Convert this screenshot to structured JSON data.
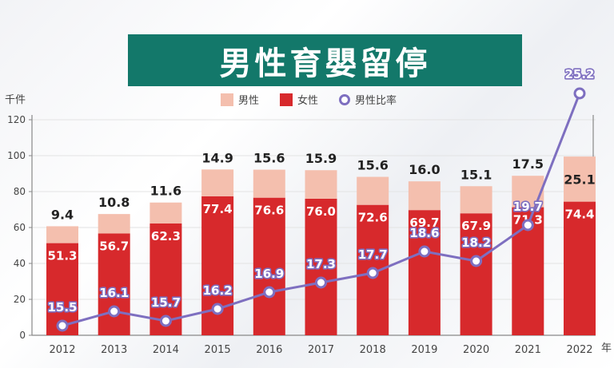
{
  "title": "男性育嬰留停",
  "unit_label": "千件",
  "year_unit": "年",
  "legend": {
    "male": "男性",
    "female": "女性",
    "ratio": "男性比率"
  },
  "colors": {
    "male": "#f4bfae",
    "female": "#d7292c",
    "ratio": "#7e6fc0",
    "banner": "#13786a"
  },
  "chart_data": {
    "type": "bar",
    "stacked": true,
    "title": "男性育嬰留停",
    "ylabel": "千件",
    "xlabel": "年",
    "ylim": [
      0,
      120
    ],
    "yticks": [
      0,
      20,
      40,
      60,
      80,
      100,
      120
    ],
    "categories": [
      "2012",
      "2013",
      "2014",
      "2015",
      "2016",
      "2017",
      "2018",
      "2019",
      "2020",
      "2021",
      "2022"
    ],
    "series": [
      {
        "name": "女性",
        "values": [
          51.3,
          56.7,
          62.3,
          77.4,
          76.6,
          76.0,
          72.6,
          69.7,
          67.9,
          71.3,
          74.4
        ]
      },
      {
        "name": "男性",
        "values": [
          9.4,
          10.8,
          11.6,
          14.9,
          15.6,
          15.9,
          15.6,
          16.0,
          15.1,
          17.5,
          25.1
        ]
      }
    ],
    "line": {
      "name": "男性比率",
      "unit": "%",
      "values": [
        15.5,
        16.1,
        15.7,
        16.2,
        16.9,
        17.3,
        17.7,
        18.6,
        18.2,
        19.7,
        25.2
      ]
    }
  }
}
